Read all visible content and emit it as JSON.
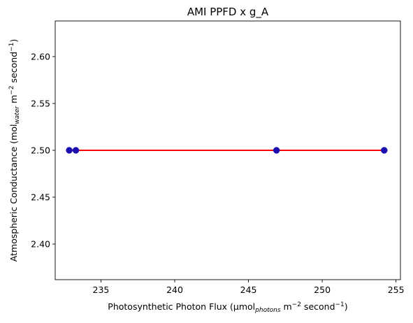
{
  "chart_data": {
    "type": "scatter",
    "title": "AMI PPFD x g_A",
    "xlabel": {
      "prefix": "Photosynthetic Photon Flux (µmol",
      "sub": "photons",
      "mid1": " m",
      "sup1": "−2",
      "mid2": " second",
      "sup2": "−1",
      "suffix": ")"
    },
    "ylabel": {
      "prefix": "Atmospheric Conductance (mol",
      "sub": "water",
      "mid1": " m",
      "sup1": "−2",
      "mid2": " second",
      "sup2": "−1",
      "suffix": ")"
    },
    "xlim": [
      231.9,
      255.3
    ],
    "ylim": [
      2.362,
      2.638
    ],
    "xticks": [
      235,
      240,
      245,
      250,
      255
    ],
    "yticks": [
      2.4,
      2.45,
      2.5,
      2.55,
      2.6
    ],
    "xtick_labels": [
      "235",
      "240",
      "245",
      "250",
      "255"
    ],
    "ytick_labels": [
      "2.40",
      "2.45",
      "2.50",
      "2.55",
      "2.60"
    ],
    "series": [
      {
        "name": "observations",
        "kind": "points",
        "color": "#1a10b0",
        "x": [
          232.85,
          233.3,
          246.9,
          254.2
        ],
        "y": [
          2.5,
          2.5,
          2.5,
          2.5
        ]
      },
      {
        "name": "fit",
        "kind": "line",
        "color": "#ff0000",
        "x": [
          232.85,
          254.2
        ],
        "y": [
          2.5,
          2.5
        ]
      }
    ],
    "grid": false,
    "legend": "none"
  }
}
